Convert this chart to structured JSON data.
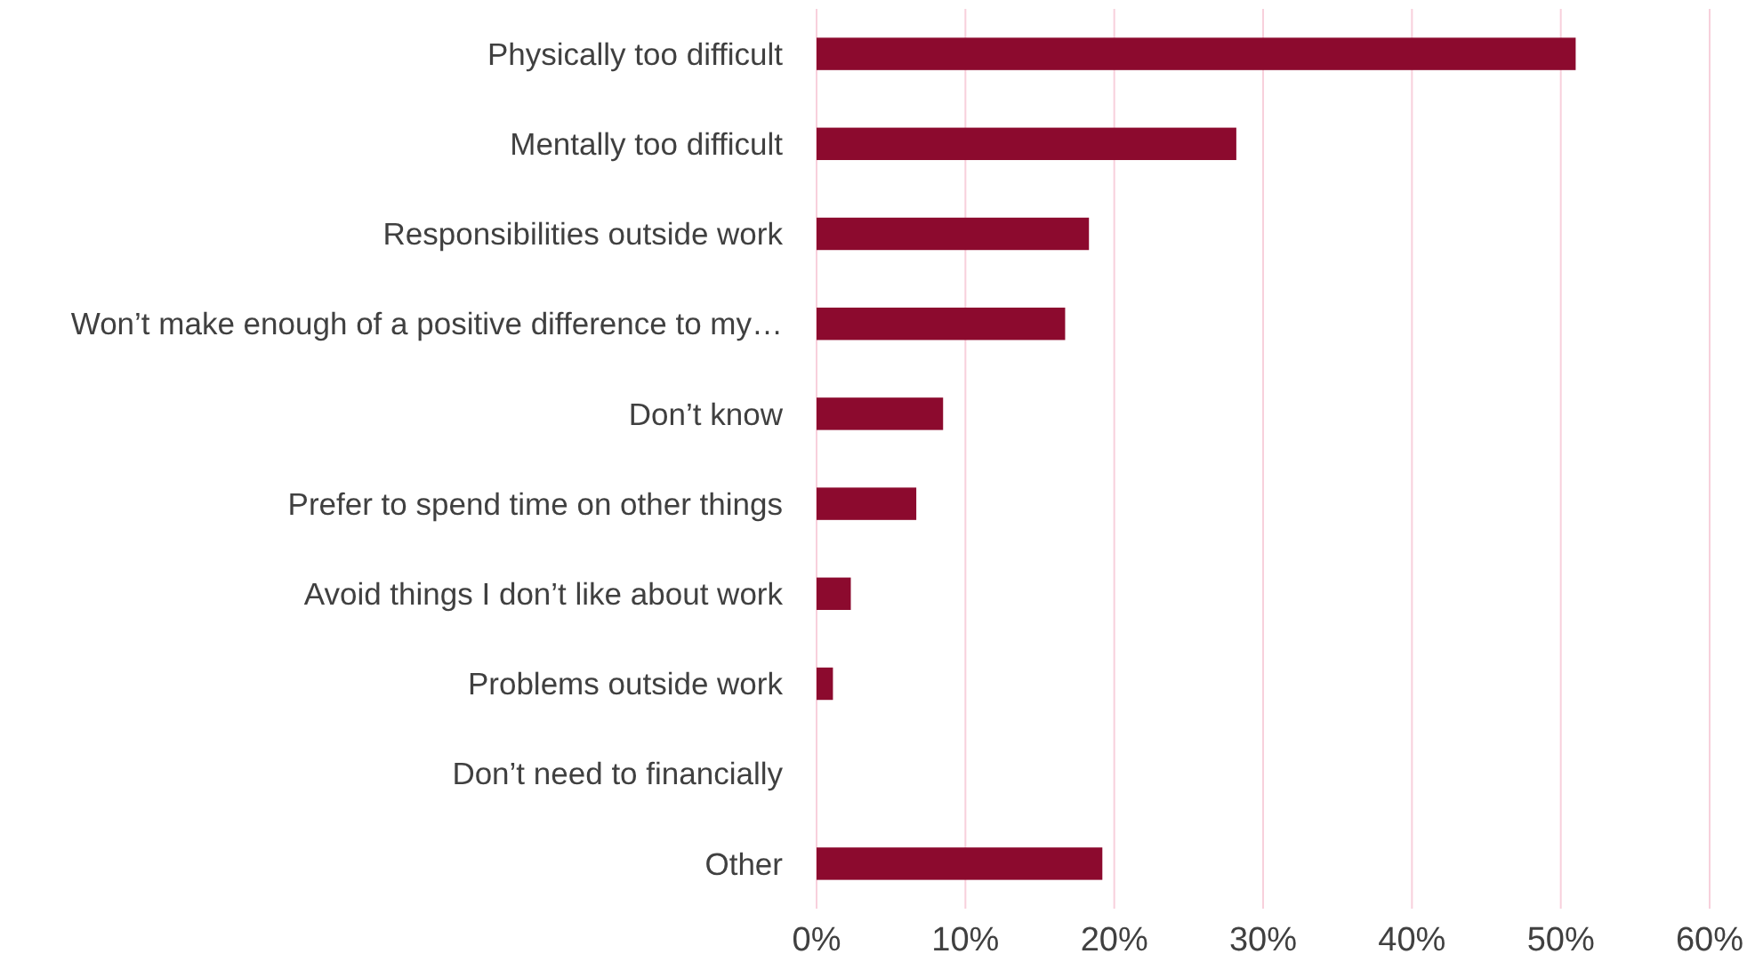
{
  "chart_data": {
    "type": "bar",
    "orientation": "horizontal",
    "categories": [
      "Physically too difficult",
      "Mentally too difficult",
      "Responsibilities outside work",
      "Won’t make enough of a positive difference to my…",
      "Don’t know",
      "Prefer to spend time on other things",
      "Avoid things I don’t like about work",
      "Problems outside work",
      "Don’t need to financially",
      "Other"
    ],
    "values": [
      51.0,
      28.2,
      18.3,
      16.7,
      8.5,
      6.7,
      2.3,
      1.1,
      0,
      19.2
    ],
    "color": "#8c0a2e",
    "xlim": [
      0,
      60
    ],
    "xticks": [
      {
        "value": 0,
        "label": "0%"
      },
      {
        "value": 10,
        "label": "10%"
      },
      {
        "value": 20,
        "label": "20%"
      },
      {
        "value": 30,
        "label": "30%"
      },
      {
        "value": 40,
        "label": "40%"
      },
      {
        "value": 50,
        "label": "50%"
      },
      {
        "value": 60,
        "label": "60%"
      }
    ],
    "grid": "x"
  }
}
